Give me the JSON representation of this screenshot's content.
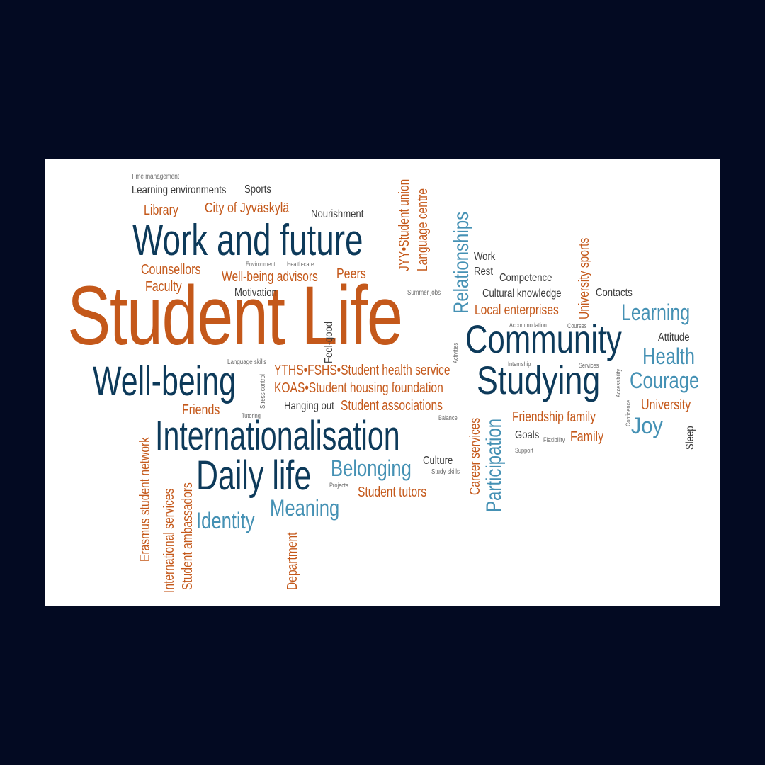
{
  "words": [
    {
      "text": "Student Life",
      "color": "#c4581a"
    },
    {
      "text": "Work and future",
      "color": "#0d3a5a"
    },
    {
      "text": "Community",
      "color": "#0d3a5a"
    },
    {
      "text": "Well-being",
      "color": "#0d3a5a"
    },
    {
      "text": "Studying",
      "color": "#0d3a5a"
    },
    {
      "text": "Internationalisation",
      "color": "#0d3a5a"
    },
    {
      "text": "Daily life",
      "color": "#0d3a5a"
    },
    {
      "text": "Relationships",
      "color": "#4591b4"
    },
    {
      "text": "Participation",
      "color": "#4591b4"
    },
    {
      "text": "Learning",
      "color": "#4591b4"
    },
    {
      "text": "Health",
      "color": "#4591b4"
    },
    {
      "text": "Courage",
      "color": "#4591b4"
    },
    {
      "text": "Joy",
      "color": "#4591b4"
    },
    {
      "text": "Belonging",
      "color": "#4591b4"
    },
    {
      "text": "Meaning",
      "color": "#4591b4"
    },
    {
      "text": "Identity",
      "color": "#4591b4"
    },
    {
      "text": "Time management",
      "color": "#6a6a6a"
    },
    {
      "text": "Learning environments",
      "color": "#3a3a3a"
    },
    {
      "text": "Sports",
      "color": "#3a3a3a"
    },
    {
      "text": "Library",
      "color": "#c4581a"
    },
    {
      "text": "City of Jyväskylä",
      "color": "#c4581a"
    },
    {
      "text": "Nourishment",
      "color": "#3a3a3a"
    },
    {
      "text": "Counsellors",
      "color": "#c4581a"
    },
    {
      "text": "Faculty",
      "color": "#c4581a"
    },
    {
      "text": "Environment",
      "color": "#6a6a6a"
    },
    {
      "text": "Health-care",
      "color": "#6a6a6a"
    },
    {
      "text": "Well-being advisors",
      "color": "#c4581a"
    },
    {
      "text": "Peers",
      "color": "#c4581a"
    },
    {
      "text": "Motivation",
      "color": "#3a3a3a"
    },
    {
      "text": "Summer jobs",
      "color": "#6a6a6a"
    },
    {
      "text": "JYY•Student union",
      "color": "#c4581a"
    },
    {
      "text": "Language centre",
      "color": "#c4581a"
    },
    {
      "text": "Work",
      "color": "#3a3a3a"
    },
    {
      "text": "Rest",
      "color": "#3a3a3a"
    },
    {
      "text": "Competence",
      "color": "#3a3a3a"
    },
    {
      "text": "Cultural knowledge",
      "color": "#3a3a3a"
    },
    {
      "text": "Contacts",
      "color": "#3a3a3a"
    },
    {
      "text": "University sports",
      "color": "#c4581a"
    },
    {
      "text": "Local enterprises",
      "color": "#c4581a"
    },
    {
      "text": "Accommodation",
      "color": "#6a6a6a"
    },
    {
      "text": "Courses",
      "color": "#6a6a6a"
    },
    {
      "text": "Attitude",
      "color": "#3a3a3a"
    },
    {
      "text": "Feel-good",
      "color": "#3a3a3a"
    },
    {
      "text": "Activities",
      "color": "#6a6a6a"
    },
    {
      "text": "Language skills",
      "color": "#6a6a6a"
    },
    {
      "text": "Stress control",
      "color": "#6a6a6a"
    },
    {
      "text": "YTHS•FSHS•Student health service",
      "color": "#c4581a"
    },
    {
      "text": "KOAS•Student housing foundation",
      "color": "#c4581a"
    },
    {
      "text": "Internship",
      "color": "#6a6a6a"
    },
    {
      "text": "Services",
      "color": "#6a6a6a"
    },
    {
      "text": "Accessibility",
      "color": "#6a6a6a"
    },
    {
      "text": "Friends",
      "color": "#c4581a"
    },
    {
      "text": "Tutoring",
      "color": "#6a6a6a"
    },
    {
      "text": "Hanging out",
      "color": "#3a3a3a"
    },
    {
      "text": "Student associations",
      "color": "#c4581a"
    },
    {
      "text": "Balance",
      "color": "#6a6a6a"
    },
    {
      "text": "Career services",
      "color": "#c4581a"
    },
    {
      "text": "Friendship family",
      "color": "#c4581a"
    },
    {
      "text": "University",
      "color": "#c4581a"
    },
    {
      "text": "Confidence",
      "color": "#6a6a6a"
    },
    {
      "text": "Goals",
      "color": "#3a3a3a"
    },
    {
      "text": "Flexibility",
      "color": "#6a6a6a"
    },
    {
      "text": "Family",
      "color": "#c4581a"
    },
    {
      "text": "Support",
      "color": "#6a6a6a"
    },
    {
      "text": "Sleep",
      "color": "#3a3a3a"
    },
    {
      "text": "Erasmus student network",
      "color": "#c4581a"
    },
    {
      "text": "International services",
      "color": "#c4581a"
    },
    {
      "text": "Student ambassadors",
      "color": "#c4581a"
    },
    {
      "text": "Department",
      "color": "#c4581a"
    },
    {
      "text": "Culture",
      "color": "#3a3a3a"
    },
    {
      "text": "Study skills",
      "color": "#6a6a6a"
    },
    {
      "text": "Projects",
      "color": "#6a6a6a"
    },
    {
      "text": "Student tutors",
      "color": "#c4581a"
    }
  ]
}
